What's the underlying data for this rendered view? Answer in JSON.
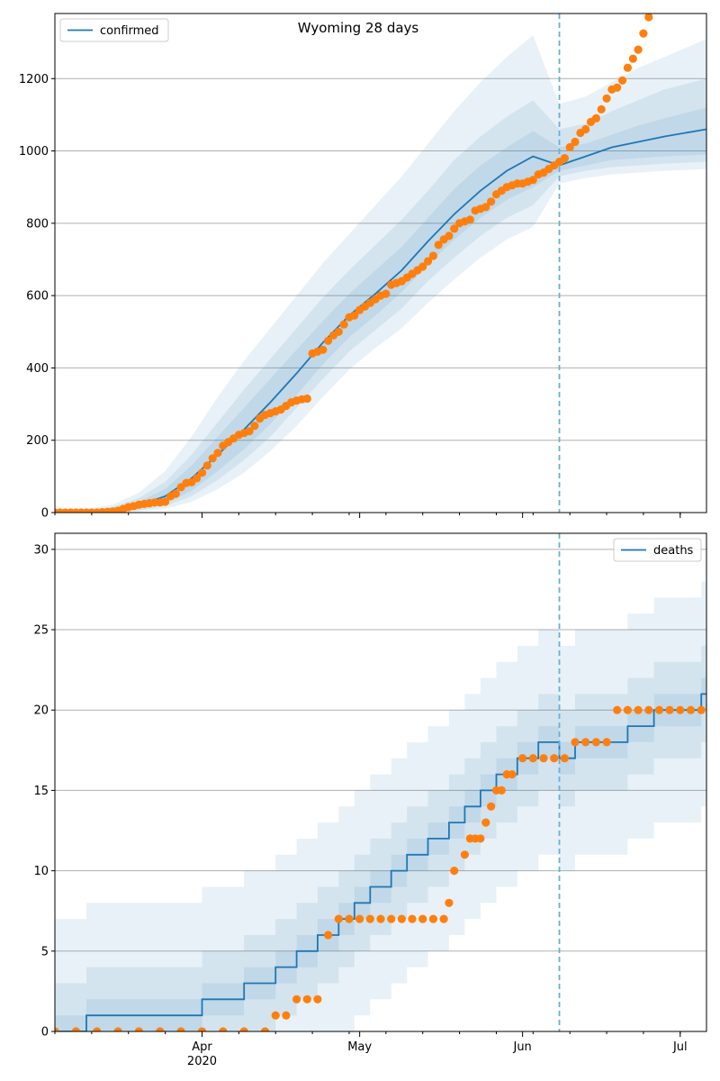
{
  "title": "Wyoming 28 days",
  "colors": {
    "line": "#1f77b4",
    "points": "#ff7f0e",
    "band": "#1f77b4",
    "grid": "#b0b0b0",
    "vline": "#6baed6"
  },
  "x_ticks": {
    "major": [
      {
        "date": "2020-04-01",
        "label": "Apr",
        "sublabel": "2020"
      },
      {
        "date": "2020-05-01",
        "label": "May",
        "sublabel": ""
      },
      {
        "date": "2020-06-01",
        "label": "Jun",
        "sublabel": ""
      },
      {
        "date": "2020-07-01",
        "label": "Jul",
        "sublabel": ""
      }
    ]
  },
  "chart_data": [
    {
      "type": "line",
      "legend": "confirmed",
      "legend_position": "top-left",
      "grid": "horizontal",
      "xlim": [
        "2020-03-04",
        "2020-07-06"
      ],
      "ylim": [
        0,
        1380
      ],
      "yticks": [
        0,
        200,
        400,
        600,
        800,
        1000,
        1200
      ],
      "forecast_start": "2020-06-08",
      "model_x": [
        "2020-03-04",
        "2020-03-10",
        "2020-03-15",
        "2020-03-20",
        "2020-03-25",
        "2020-03-30",
        "2020-04-04",
        "2020-04-09",
        "2020-04-14",
        "2020-04-19",
        "2020-04-24",
        "2020-04-29",
        "2020-05-04",
        "2020-05-09",
        "2020-05-14",
        "2020-05-19",
        "2020-05-24",
        "2020-05-29",
        "2020-06-03",
        "2020-06-08",
        "2020-06-13",
        "2020-06-18",
        "2020-06-23",
        "2020-06-28",
        "2020-07-06"
      ],
      "model_median": [
        0,
        3,
        8,
        20,
        45,
        95,
        160,
        230,
        305,
        385,
        470,
        545,
        605,
        670,
        750,
        825,
        890,
        945,
        985,
        960,
        985,
        1010,
        1025,
        1040,
        1060
      ],
      "bands": [
        {
          "lower": [
            0,
            1,
            3,
            10,
            25,
            60,
            115,
            175,
            245,
            325,
            410,
            485,
            545,
            610,
            685,
            755,
            815,
            865,
            900,
            945,
            960,
            975,
            980,
            985,
            990
          ],
          "upper": [
            0,
            5,
            12,
            30,
            65,
            130,
            210,
            290,
            370,
            450,
            530,
            605,
            670,
            735,
            815,
            895,
            960,
            1010,
            1055,
            1010,
            1020,
            1045,
            1070,
            1090,
            1120
          ]
        },
        {
          "lower": [
            0,
            0,
            2,
            6,
            18,
            45,
            90,
            145,
            210,
            290,
            370,
            445,
            505,
            565,
            640,
            705,
            765,
            815,
            850,
            930,
            945,
            955,
            960,
            965,
            970
          ],
          "upper": [
            0,
            7,
            16,
            40,
            85,
            160,
            250,
            340,
            425,
            510,
            595,
            670,
            740,
            810,
            890,
            975,
            1040,
            1095,
            1140,
            1060,
            1075,
            1110,
            1140,
            1170,
            1200
          ],
          "note": ""
        },
        {
          "lower": [
            0,
            0,
            1,
            3,
            10,
            30,
            65,
            110,
            170,
            240,
            320,
            395,
            455,
            510,
            580,
            645,
            705,
            755,
            790,
            910,
            925,
            935,
            940,
            945,
            950
          ],
          "upper": [
            0,
            10,
            22,
            55,
            115,
            210,
            320,
            420,
            510,
            600,
            690,
            770,
            850,
            930,
            1020,
            1110,
            1190,
            1260,
            1320,
            1130,
            1150,
            1190,
            1230,
            1260,
            1310
          ]
        }
      ],
      "points_x": [
        "2020-03-04",
        "2020-03-05",
        "2020-03-06",
        "2020-03-07",
        "2020-03-08",
        "2020-03-09",
        "2020-03-10",
        "2020-03-11",
        "2020-03-12",
        "2020-03-13",
        "2020-03-14",
        "2020-03-15",
        "2020-03-16",
        "2020-03-17",
        "2020-03-18",
        "2020-03-19",
        "2020-03-20",
        "2020-03-21",
        "2020-03-22",
        "2020-03-23",
        "2020-03-24",
        "2020-03-25",
        "2020-03-26",
        "2020-03-27",
        "2020-03-28",
        "2020-03-29",
        "2020-03-30",
        "2020-03-31",
        "2020-04-01",
        "2020-04-02",
        "2020-04-03",
        "2020-04-04",
        "2020-04-05",
        "2020-04-06",
        "2020-04-07",
        "2020-04-08",
        "2020-04-09",
        "2020-04-10",
        "2020-04-11",
        "2020-04-12",
        "2020-04-13",
        "2020-04-14",
        "2020-04-15",
        "2020-04-16",
        "2020-04-17",
        "2020-04-18",
        "2020-04-19",
        "2020-04-20",
        "2020-04-21",
        "2020-04-22",
        "2020-04-23",
        "2020-04-24",
        "2020-04-25",
        "2020-04-26",
        "2020-04-27",
        "2020-04-28",
        "2020-04-29",
        "2020-04-30",
        "2020-05-01",
        "2020-05-02",
        "2020-05-03",
        "2020-05-04",
        "2020-05-05",
        "2020-05-06",
        "2020-05-07",
        "2020-05-08",
        "2020-05-09",
        "2020-05-10",
        "2020-05-11",
        "2020-05-12",
        "2020-05-13",
        "2020-05-14",
        "2020-05-15",
        "2020-05-16",
        "2020-05-17",
        "2020-05-18",
        "2020-05-19",
        "2020-05-20",
        "2020-05-21",
        "2020-05-22",
        "2020-05-23",
        "2020-05-24",
        "2020-05-25",
        "2020-05-26",
        "2020-05-27",
        "2020-05-28",
        "2020-05-29",
        "2020-05-30",
        "2020-05-31",
        "2020-06-01",
        "2020-06-02",
        "2020-06-03",
        "2020-06-04",
        "2020-06-05",
        "2020-06-06",
        "2020-06-07",
        "2020-06-08",
        "2020-06-09",
        "2020-06-10",
        "2020-06-11",
        "2020-06-12",
        "2020-06-13",
        "2020-06-14",
        "2020-06-15",
        "2020-06-16",
        "2020-06-17",
        "2020-06-18",
        "2020-06-19",
        "2020-06-20",
        "2020-06-21",
        "2020-06-22",
        "2020-06-23",
        "2020-06-24",
        "2020-06-25"
      ],
      "points_y": [
        0,
        0,
        0,
        0,
        0,
        0,
        0,
        0,
        0,
        1,
        2,
        3,
        5,
        10,
        15,
        18,
        22,
        24,
        26,
        28,
        28,
        30,
        45,
        52,
        70,
        82,
        84,
        95,
        110,
        130,
        150,
        165,
        185,
        195,
        205,
        215,
        220,
        225,
        240,
        260,
        270,
        275,
        280,
        285,
        295,
        305,
        310,
        313,
        315,
        440,
        445,
        450,
        475,
        490,
        500,
        520,
        540,
        545,
        560,
        570,
        580,
        590,
        600,
        605,
        630,
        635,
        640,
        650,
        660,
        670,
        680,
        695,
        710,
        740,
        755,
        765,
        785,
        800,
        805,
        810,
        835,
        840,
        845,
        860,
        880,
        890,
        900,
        905,
        910,
        910,
        915,
        920,
        935,
        940,
        950,
        960,
        970,
        980,
        1010,
        1025,
        1050,
        1060,
        1080,
        1090,
        1115,
        1145,
        1170,
        1175,
        1195,
        1230,
        1255,
        1280,
        1325,
        1370
      ]
    },
    {
      "type": "line",
      "legend": "deaths",
      "legend_position": "top-right",
      "grid": "horizontal",
      "xlim": [
        "2020-03-04",
        "2020-07-06"
      ],
      "ylim": [
        0,
        31
      ],
      "yticks": [
        0,
        5,
        10,
        15,
        20,
        25,
        30
      ],
      "forecast_start": "2020-06-08",
      "model_step": [
        [
          "2020-03-04",
          0
        ],
        [
          "2020-03-10",
          1
        ],
        [
          "2020-04-01",
          2
        ],
        [
          "2020-04-09",
          3
        ],
        [
          "2020-04-15",
          4
        ],
        [
          "2020-04-19",
          5
        ],
        [
          "2020-04-23",
          6
        ],
        [
          "2020-04-27",
          7
        ],
        [
          "2020-04-30",
          8
        ],
        [
          "2020-05-03",
          9
        ],
        [
          "2020-05-07",
          10
        ],
        [
          "2020-05-10",
          11
        ],
        [
          "2020-05-14",
          12
        ],
        [
          "2020-05-18",
          13
        ],
        [
          "2020-05-21",
          14
        ],
        [
          "2020-05-24",
          15
        ],
        [
          "2020-05-27",
          16
        ],
        [
          "2020-05-31",
          17
        ],
        [
          "2020-06-04",
          18
        ],
        [
          "2020-06-08",
          17
        ],
        [
          "2020-06-11",
          18
        ],
        [
          "2020-06-21",
          19
        ],
        [
          "2020-06-26",
          20
        ],
        [
          "2020-07-05",
          21
        ],
        [
          "2020-07-06",
          21
        ]
      ],
      "bands": [
        {
          "offset_lower": 1,
          "offset_upper": 1
        },
        {
          "offset_lower": 3,
          "offset_upper": 3
        },
        {
          "offset_lower": 7,
          "offset_upper": 7
        }
      ],
      "points_x": [
        "2020-03-04",
        "2020-03-08",
        "2020-03-12",
        "2020-03-16",
        "2020-03-20",
        "2020-03-24",
        "2020-03-28",
        "2020-04-01",
        "2020-04-05",
        "2020-04-09",
        "2020-04-13",
        "2020-04-15",
        "2020-04-17",
        "2020-04-19",
        "2020-04-21",
        "2020-04-23",
        "2020-04-25",
        "2020-04-27",
        "2020-04-29",
        "2020-05-01",
        "2020-05-03",
        "2020-05-05",
        "2020-05-07",
        "2020-05-09",
        "2020-05-11",
        "2020-05-13",
        "2020-05-15",
        "2020-05-17",
        "2020-05-18",
        "2020-05-19",
        "2020-05-21",
        "2020-05-22",
        "2020-05-23",
        "2020-05-24",
        "2020-05-25",
        "2020-05-26",
        "2020-05-27",
        "2020-05-28",
        "2020-05-29",
        "2020-05-30",
        "2020-06-01",
        "2020-06-03",
        "2020-06-05",
        "2020-06-07",
        "2020-06-09",
        "2020-06-11",
        "2020-06-13",
        "2020-06-15",
        "2020-06-17",
        "2020-06-19",
        "2020-06-21",
        "2020-06-23",
        "2020-06-25",
        "2020-06-27",
        "2020-06-29",
        "2020-07-01",
        "2020-07-03",
        "2020-07-05"
      ],
      "points_y": [
        0,
        0,
        0,
        0,
        0,
        0,
        0,
        0,
        0,
        0,
        0,
        1,
        1,
        2,
        2,
        2,
        6,
        7,
        7,
        7,
        7,
        7,
        7,
        7,
        7,
        7,
        7,
        7,
        8,
        10,
        11,
        12,
        12,
        12,
        13,
        14,
        15,
        15,
        16,
        16,
        17,
        17,
        17,
        17,
        17,
        18,
        18,
        18,
        18,
        20,
        20,
        20,
        20,
        20,
        20,
        20,
        20,
        20
      ]
    }
  ]
}
